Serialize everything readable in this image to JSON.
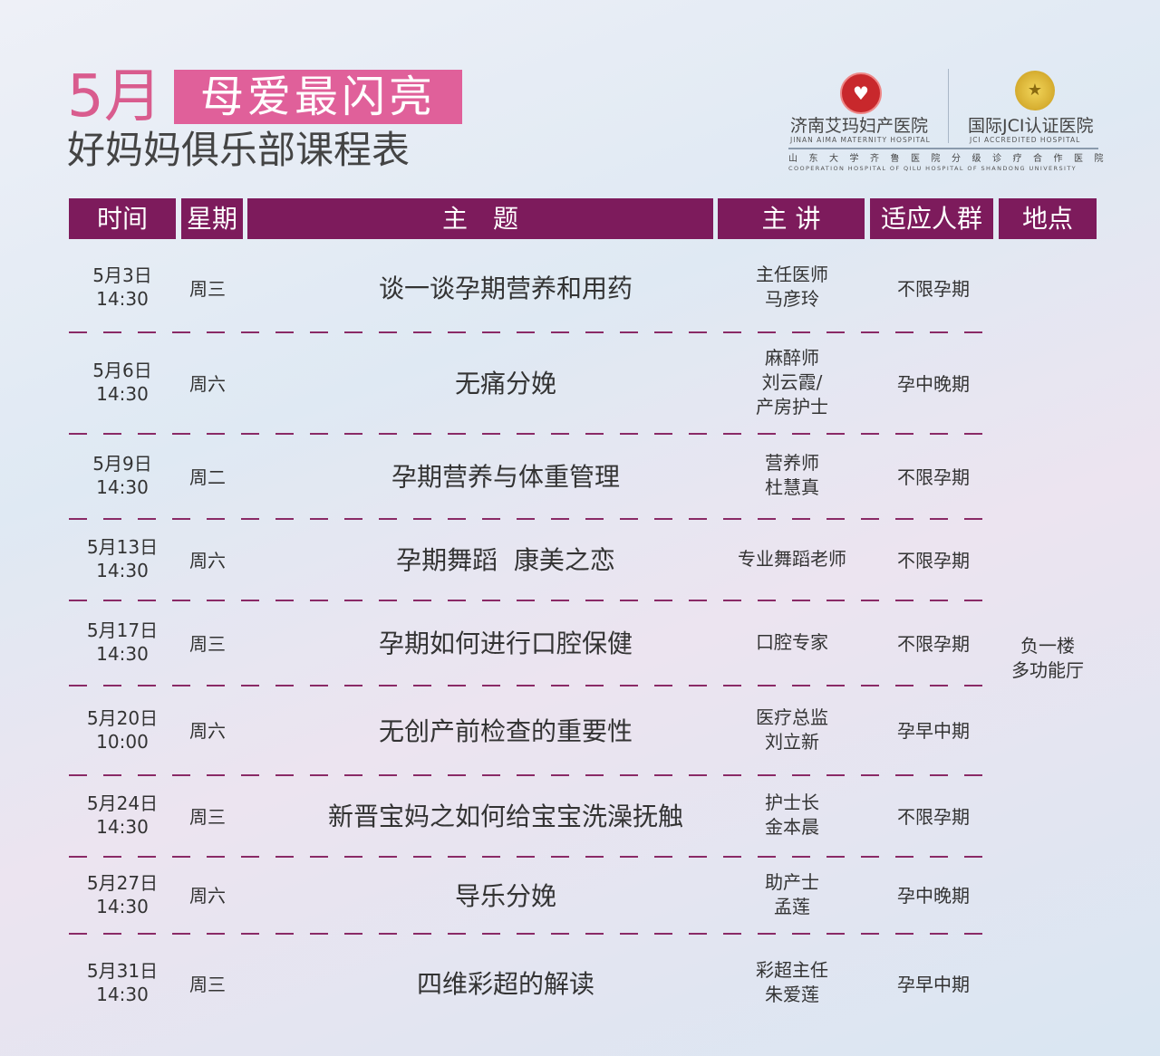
{
  "header": {
    "month": "5月",
    "slogan": "母爱最闪亮",
    "subtitle": "好妈妈俱乐部课程表"
  },
  "hospital": {
    "name_cn": "济南艾玛妇产医院",
    "name_en": "JINAN AIMA MATERNITY HOSPITAL",
    "jci_cn": "国际JCI认证医院",
    "jci_en": "JCI ACCREDITED HOSPITAL",
    "coop_cn": "山东大学齐鲁医院分级诊疗合作医院",
    "coop_en": "COOPERATION HOSPITAL OF QILU HOSPITAL OF SHANDONG UNIVERSITY",
    "brand_color": "#c8282c"
  },
  "table": {
    "header_color": "#7d1b5c",
    "columns": [
      "时间",
      "星期",
      "主　题",
      "主 讲",
      "适应人群",
      "地点"
    ],
    "location": [
      "负一楼",
      "多功能厅"
    ],
    "rows": [
      {
        "date": "5月3日",
        "time": "14:30",
        "day": "周三",
        "topic": "谈一谈孕期营养和用药",
        "speaker": [
          "主任医师",
          "马彦玲"
        ],
        "audience": "不限孕期"
      },
      {
        "date": "5月6日",
        "time": "14:30",
        "day": "周六",
        "topic": "无痛分娩",
        "speaker": [
          "麻醉师",
          "刘云霞/",
          "产房护士"
        ],
        "audience": "孕中晚期"
      },
      {
        "date": "5月9日",
        "time": "14:30",
        "day": "周二",
        "topic": "孕期营养与体重管理",
        "speaker": [
          "营养师",
          "杜慧真"
        ],
        "audience": "不限孕期"
      },
      {
        "date": "5月13日",
        "time": "14:30",
        "day": "周六",
        "topic": "孕期舞蹈  康美之恋",
        "speaker": [
          "专业舞蹈老师"
        ],
        "audience": "不限孕期"
      },
      {
        "date": "5月17日",
        "time": "14:30",
        "day": "周三",
        "topic": "孕期如何进行口腔保健",
        "speaker": [
          "口腔专家"
        ],
        "audience": "不限孕期"
      },
      {
        "date": "5月20日",
        "time": "10:00",
        "day": "周六",
        "topic": "无创产前检查的重要性",
        "speaker": [
          "医疗总监",
          "刘立新"
        ],
        "audience": "孕早中期"
      },
      {
        "date": "5月24日",
        "time": "14:30",
        "day": "周三",
        "topic": "新晋宝妈之如何给宝宝洗澡抚触",
        "speaker": [
          "护士长",
          "金本晨"
        ],
        "audience": "不限孕期"
      },
      {
        "date": "5月27日",
        "time": "14:30",
        "day": "周六",
        "topic": "导乐分娩",
        "speaker": [
          "助产士",
          "孟莲"
        ],
        "audience": "孕中晚期"
      },
      {
        "date": "5月31日",
        "time": "14:30",
        "day": "周三",
        "topic": "四维彩超的解读",
        "speaker": [
          "彩超主任",
          "朱爱莲"
        ],
        "audience": "孕早中期"
      }
    ]
  }
}
